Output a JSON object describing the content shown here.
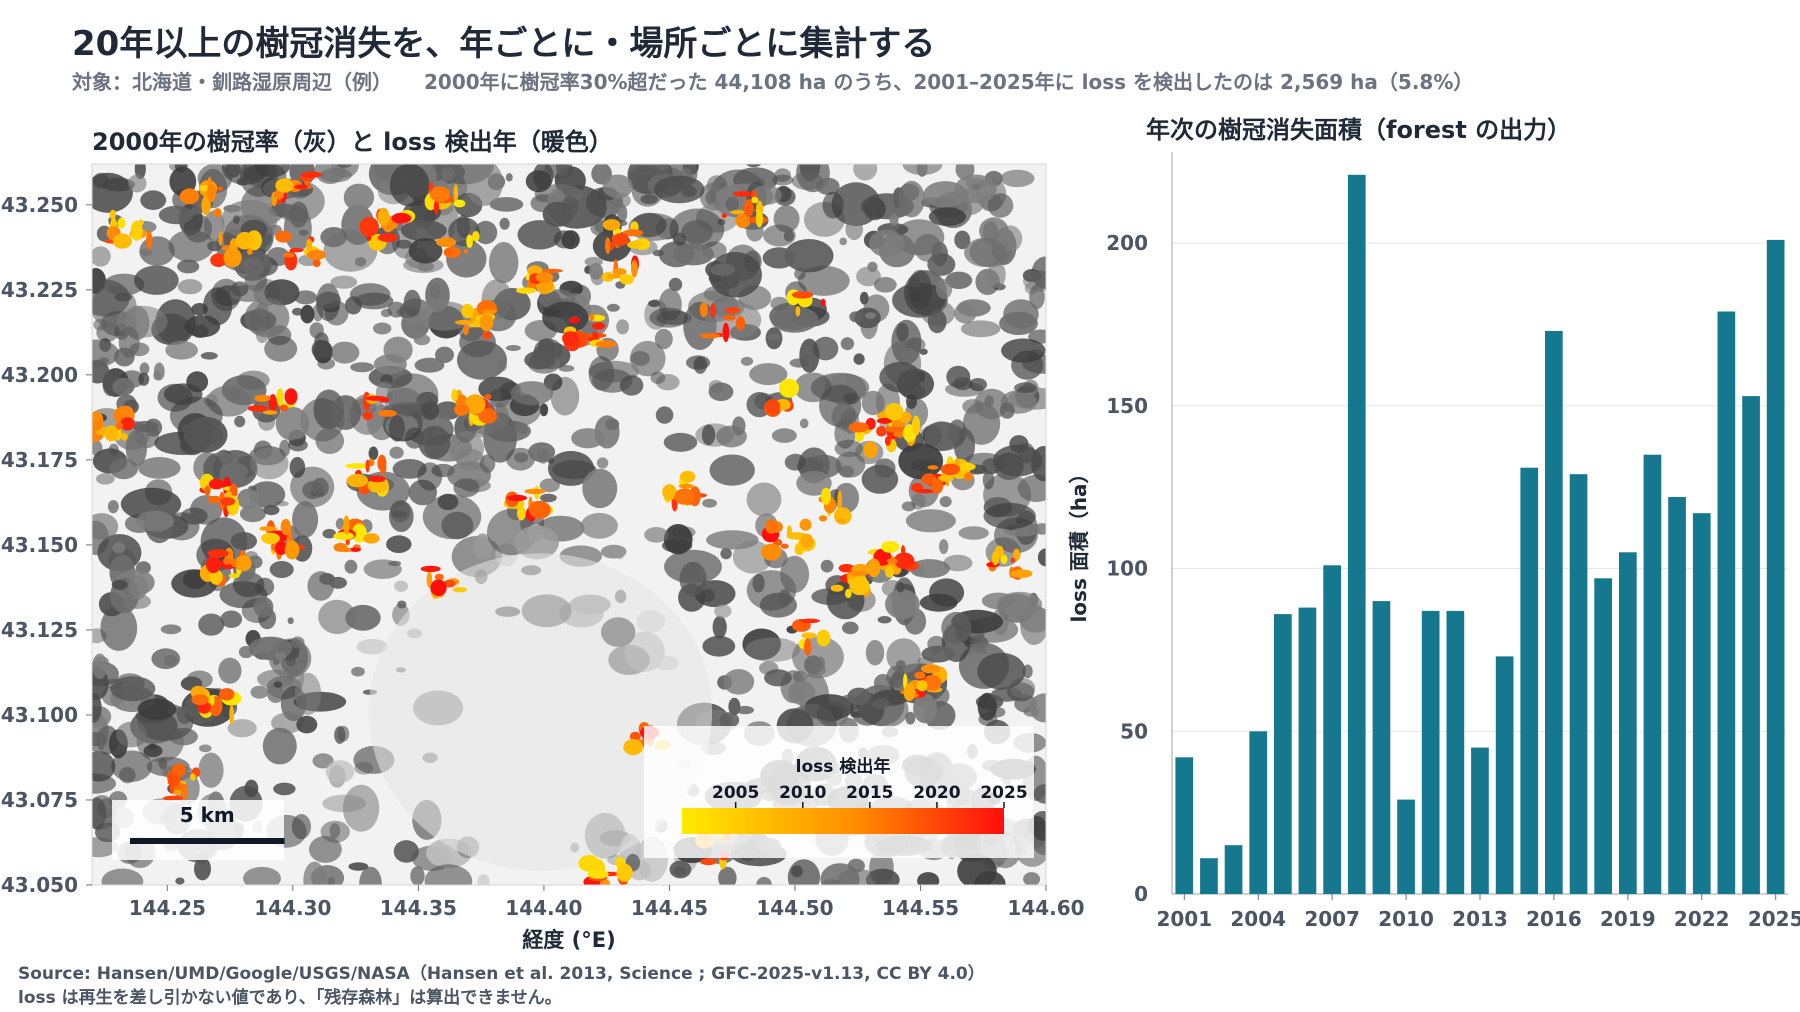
{
  "header": {
    "title": "20年以上の樹冠消失を、年ごとに・場所ごとに集計する",
    "subtitle_target": "対象：北海道・釧路湿原周辺（例）",
    "subtitle_stat": "2000年に樹冠率30%超だった 44,108 ha のうち、2001–2025年に loss を検出したのは 2,569 ha（5.8%）"
  },
  "footer": {
    "source_line": "Source: Hansen/UMD/Google/USGS/NASA（Hansen et al. 2013, Science ; GFC-2025-v1.13, CC BY 4.0）",
    "note_line": "loss は再生を差し引かない値であり、「残存森林」は算出できません。"
  },
  "colors": {
    "bar": "#15788f",
    "loss_early": "#ffea00",
    "loss_late": "#ff0d0d",
    "map_dark": "#4a4a4a",
    "map_light": "#f2f2f2"
  },
  "chart_data": [
    {
      "type": "heatmap",
      "title": "2000年の樹冠率（灰）と loss 検出年（暖色）",
      "xlabel": "経度 (°E)",
      "ylabel": "",
      "xlim": [
        144.22,
        144.6
      ],
      "ylim": [
        43.05,
        43.262
      ],
      "x_ticks": [
        "144.25",
        "144.30",
        "144.35",
        "144.40",
        "144.45",
        "144.50",
        "144.55",
        "144.60"
      ],
      "x_tick_values": [
        144.25,
        144.3,
        144.35,
        144.4,
        144.45,
        144.5,
        144.55,
        144.6
      ],
      "y_ticks": [
        "43.250",
        "43.225",
        "43.200",
        "43.175",
        "43.150",
        "43.125",
        "43.100",
        "43.075",
        "43.050"
      ],
      "y_tick_values": [
        43.25,
        43.225,
        43.2,
        43.175,
        43.15,
        43.125,
        43.1,
        43.075,
        43.05
      ],
      "colorbar": {
        "label": "loss 検出年",
        "range": [
          2001,
          2025
        ],
        "ticks": [
          "2005",
          "2010",
          "2015",
          "2020",
          "2025"
        ],
        "tick_values": [
          2005,
          2010,
          2015,
          2020,
          2025
        ],
        "placement": "bottom-right"
      },
      "scalebar": {
        "label": "5 km",
        "km": 5,
        "placement": "bottom-left"
      }
    },
    {
      "type": "bar",
      "title": "年次の樹冠消失面積（forest の出力）",
      "xlabel": "",
      "ylabel": "loss 面積（ha）",
      "ylim": [
        0,
        228
      ],
      "yticks": [
        0,
        50,
        100,
        150,
        200
      ],
      "x_tick_labels": [
        "2001",
        "2004",
        "2007",
        "2010",
        "2013",
        "2016",
        "2019",
        "2022",
        "2025"
      ],
      "grid": "horizontal",
      "categories": [
        2001,
        2002,
        2003,
        2004,
        2005,
        2006,
        2007,
        2008,
        2009,
        2010,
        2011,
        2012,
        2013,
        2014,
        2015,
        2016,
        2017,
        2018,
        2019,
        2020,
        2021,
        2022,
        2023,
        2024,
        2025
      ],
      "values": [
        42,
        11,
        15,
        50,
        86,
        88,
        101,
        221,
        90,
        29,
        87,
        87,
        45,
        73,
        131,
        173,
        129,
        97,
        105,
        135,
        122,
        117,
        179,
        153,
        201
      ]
    }
  ]
}
